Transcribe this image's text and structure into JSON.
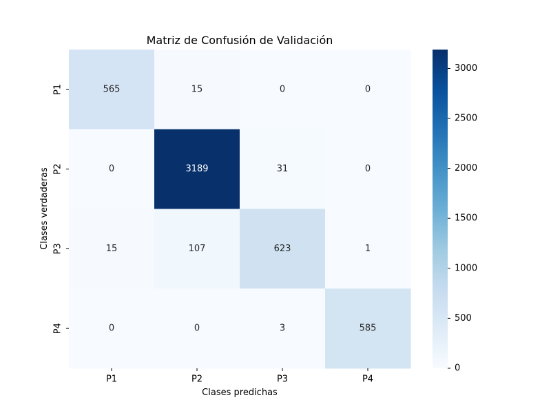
{
  "chart_data": {
    "type": "heatmap",
    "title": "Matriz de Confusión de Validación",
    "xlabel": "Clases predichas",
    "ylabel": "Clases verdaderas",
    "x_categories": [
      "P1",
      "P2",
      "P3",
      "P4"
    ],
    "y_categories": [
      "P1",
      "P2",
      "P3",
      "P4"
    ],
    "values": [
      [
        565,
        15,
        0,
        0
      ],
      [
        0,
        3189,
        31,
        0
      ],
      [
        15,
        107,
        623,
        1
      ],
      [
        0,
        0,
        3,
        585
      ]
    ],
    "colormap": "Blues",
    "colorbar": {
      "min": 0,
      "max": 3189,
      "ticks": [
        0,
        500,
        1000,
        1500,
        2000,
        2500,
        3000
      ]
    },
    "grid": false,
    "legend": "right",
    "colors": {
      "low": "#f7fbff",
      "high": "#08306b"
    }
  }
}
